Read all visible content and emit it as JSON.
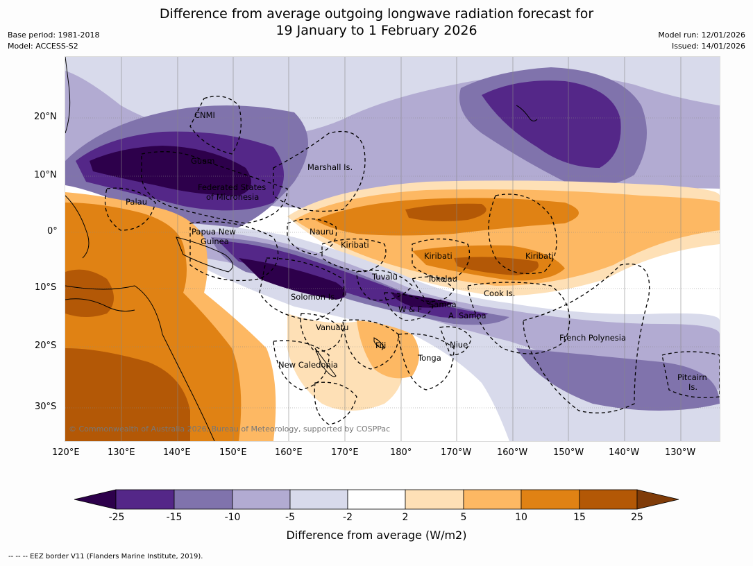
{
  "title": {
    "line1": "Difference from average outgoing longwave radiation forecast for",
    "line2": "19 January to 1 February 2026"
  },
  "meta": {
    "base_period": "Base period: 1981-2018",
    "model": "Model: ACCESS-S2",
    "model_run": "Model run: 12/01/2026",
    "issued": "Issued: 14/01/2026"
  },
  "axes": {
    "lon_ticks": [
      "120°E",
      "130°E",
      "140°E",
      "150°E",
      "160°E",
      "170°E",
      "180°",
      "170°W",
      "160°W",
      "150°W",
      "140°W",
      "130°W"
    ],
    "lat_ticks": [
      "20°N",
      "10°N",
      "0°",
      "10°S",
      "20°S",
      "30°S"
    ]
  },
  "places": {
    "cnmi": "CNMI",
    "guam": "Guam",
    "marshall": "Marshall Is.",
    "fsm1": "Federated States",
    "fsm2": "of Micronesia",
    "palau": "Palau",
    "png1": "Papua New",
    "png2": "Guinea",
    "nauru": "Nauru",
    "kiribati_w": "Kiribati",
    "kiribati_c": "Kiribati",
    "kiribati_e": "Kiribati",
    "tuvalu": "Tuvalu",
    "tokelau": "Tokelau",
    "cook": "Cook Is.",
    "solomon": "Solomon Is.",
    "wf": "W & F",
    "samoa": "Samoa",
    "asamoa": "A. Samoa",
    "vanuatu": "Vanuatu",
    "fiji": "Fiji",
    "niue": "Niue",
    "tonga": "Tonga",
    "fp": "French Polynesia",
    "newcal": "New Caledonia",
    "pitcairn1": "Pitcairn",
    "pitcairn2": "Is."
  },
  "copyright": "© Commonwealth of Australia 2026, Bureau of Meteorology, supported by COSPPac",
  "colorbar": {
    "title": "Difference from average (W/m2)",
    "labels": [
      "-25",
      "-15",
      "-10",
      "-5",
      "-2",
      "2",
      "5",
      "10",
      "15",
      "25"
    ],
    "colors": [
      "#2d004b",
      "#542788",
      "#8073ac",
      "#b2abd2",
      "#d8daeb",
      "#ffffff",
      "#fee0b6",
      "#fdb863",
      "#e08214",
      "#b35806",
      "#7f3b08"
    ]
  },
  "footnote": "--  --  -- EEZ border V11 (Flanders Marine Institute, 2019)."
}
